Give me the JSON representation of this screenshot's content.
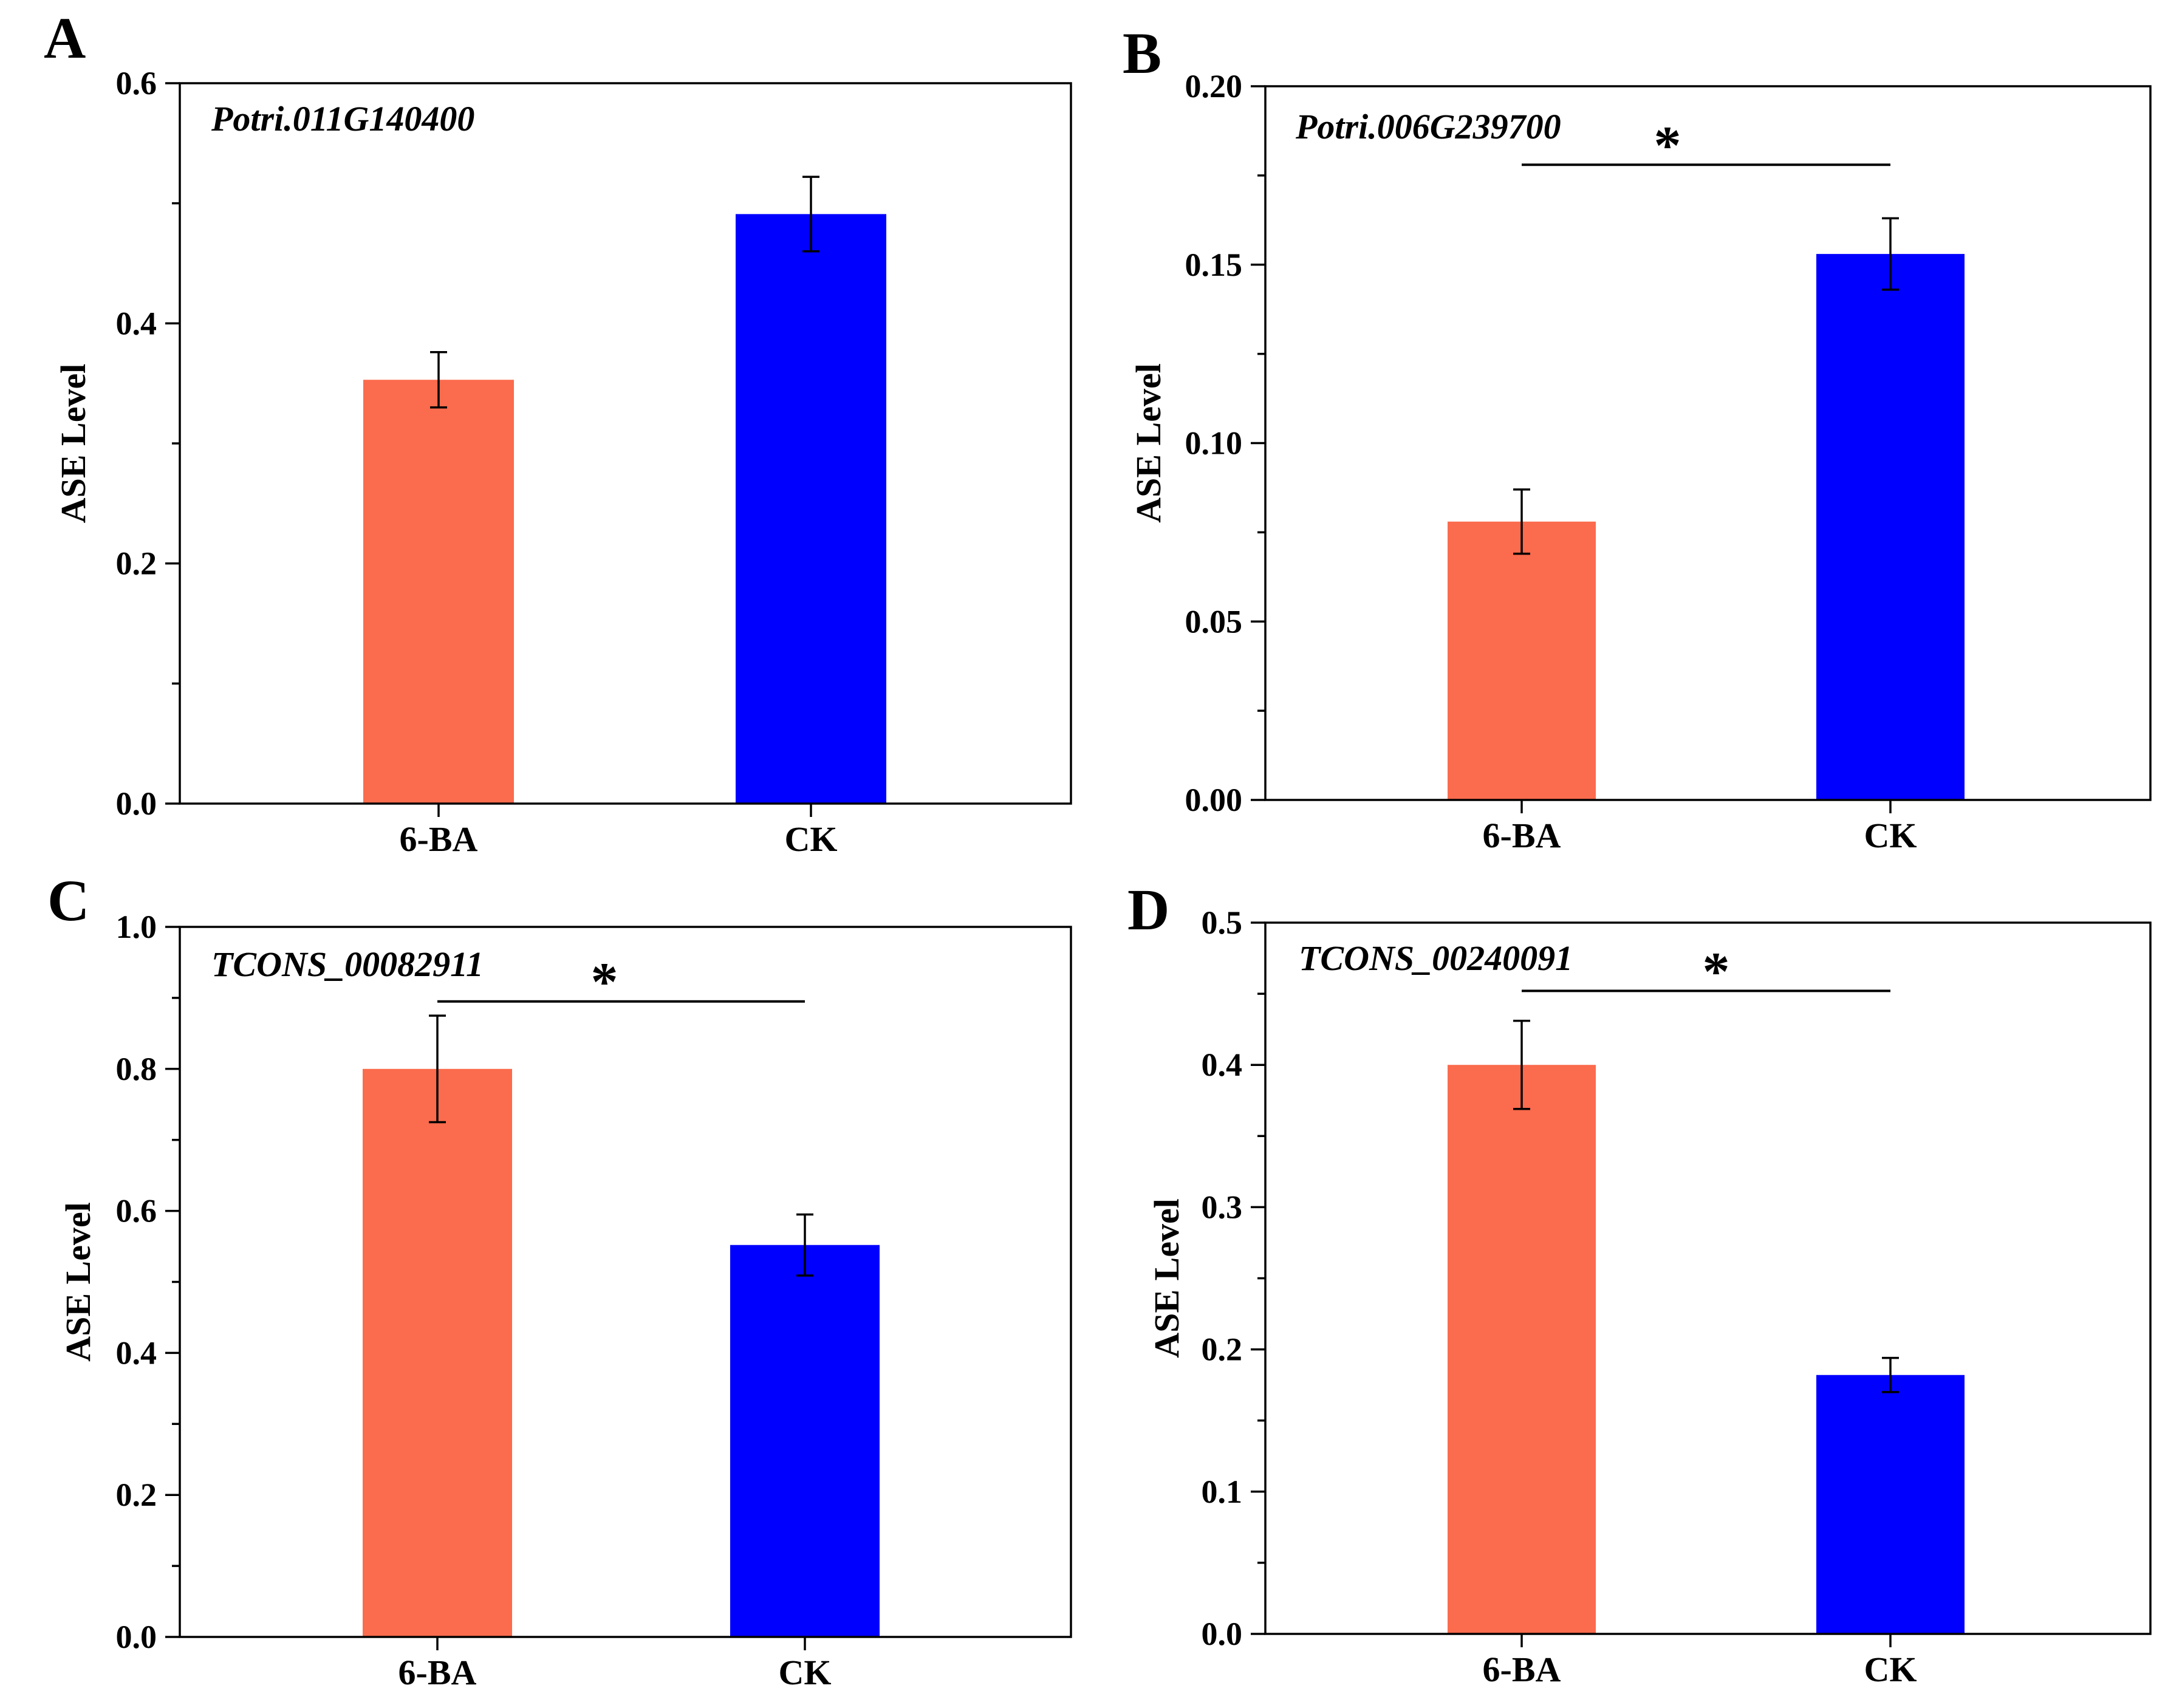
{
  "figure": {
    "colors": {
      "6-BA": "#FB6B4D",
      "CK": "#0000FF",
      "axis": "#000000"
    }
  },
  "chart_data": [
    {
      "panel": "A",
      "type": "bar",
      "title": "Potri.011G140400",
      "categories": [
        "6-BA",
        "CK"
      ],
      "values": [
        0.353,
        0.491
      ],
      "errors": [
        0.023,
        0.031
      ],
      "ylabel": "ASE Level",
      "ylim": [
        0,
        0.6
      ],
      "yticks": [
        0.0,
        0.2,
        0.4,
        0.6
      ],
      "ytick_labels": [
        "0.0",
        "0.2",
        "0.4",
        "0.6"
      ],
      "significance": null
    },
    {
      "panel": "B",
      "type": "bar",
      "title": "Potri.006G239700",
      "categories": [
        "6-BA",
        "CK"
      ],
      "values": [
        0.078,
        0.153
      ],
      "errors": [
        0.009,
        0.01
      ],
      "ylabel": "ASE Level",
      "ylim": [
        0,
        0.2
      ],
      "yticks": [
        0.0,
        0.05,
        0.1,
        0.15,
        0.2
      ],
      "ytick_labels": [
        "0.00",
        "0.05",
        "0.10",
        "0.15",
        "0.20"
      ],
      "significance": {
        "label": "*",
        "level": 0.178
      }
    },
    {
      "panel": "C",
      "type": "bar",
      "title": "TCONS_00082911",
      "categories": [
        "6-BA",
        "CK"
      ],
      "values": [
        0.8,
        0.552
      ],
      "errors": [
        0.075,
        0.043
      ],
      "ylabel": "ASE Level",
      "ylim": [
        0,
        1.0
      ],
      "yticks": [
        0.0,
        0.2,
        0.4,
        0.6,
        0.8,
        1.0
      ],
      "ytick_labels": [
        "0.0",
        "0.2",
        "0.4",
        "0.6",
        "0.8",
        "1.0"
      ],
      "significance": {
        "label": "*",
        "level": 0.895
      }
    },
    {
      "panel": "D",
      "type": "bar",
      "title": "TCONS_00240091",
      "categories": [
        "6-BA",
        "CK"
      ],
      "values": [
        0.4,
        0.182
      ],
      "errors": [
        0.031,
        0.012
      ],
      "ylabel": "ASE Level",
      "ylim": [
        0,
        0.5
      ],
      "yticks": [
        0.0,
        0.1,
        0.2,
        0.3,
        0.4,
        0.5
      ],
      "ytick_labels": [
        "0.0",
        "0.1",
        "0.2",
        "0.3",
        "0.4",
        "0.5"
      ],
      "significance": {
        "label": "*",
        "level": 0.452
      }
    }
  ]
}
